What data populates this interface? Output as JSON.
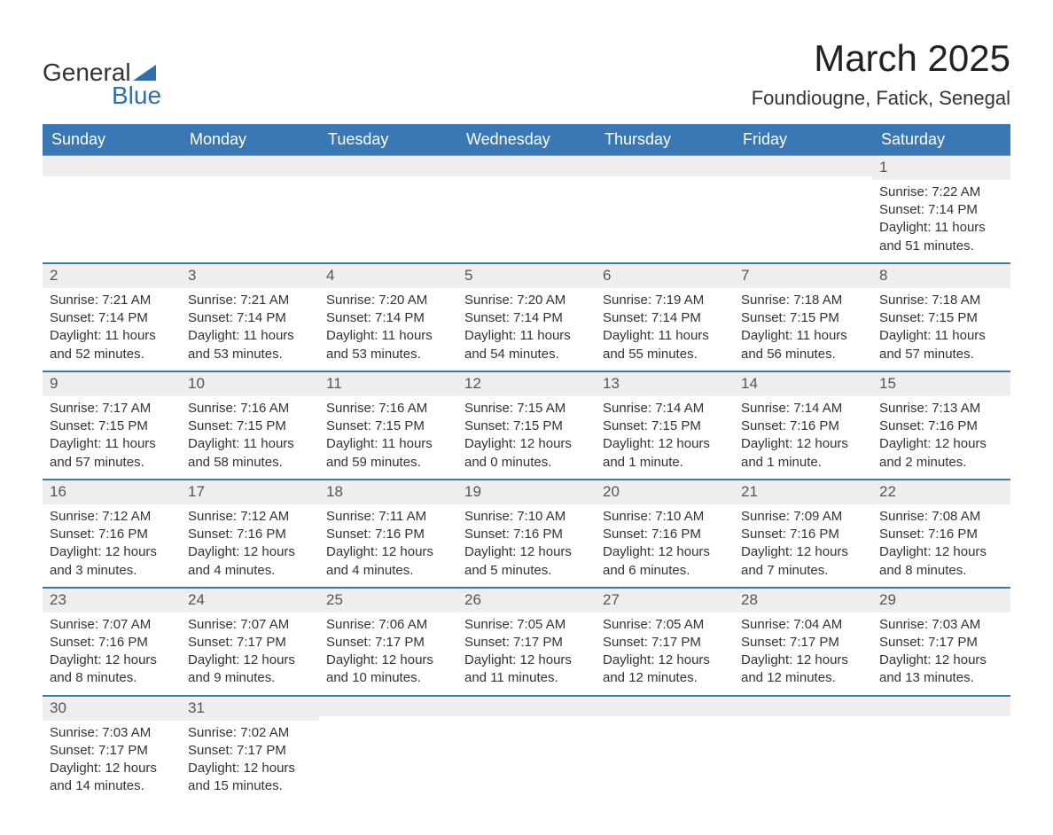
{
  "logo": {
    "text1": "General",
    "text2": "Blue",
    "shape_color": "#2f6fad"
  },
  "title": "March 2025",
  "location": "Foundiougne, Fatick, Senegal",
  "colors": {
    "header_bg": "#3a77b5",
    "header_text": "#ffffff",
    "daynum_bg": "#eeeeee",
    "row_divider": "#3a77b5",
    "body_text": "#333333"
  },
  "typography": {
    "title_fontsize": 42,
    "location_fontsize": 22,
    "dayheader_fontsize": 18,
    "body_fontsize": 15
  },
  "day_headers": [
    "Sunday",
    "Monday",
    "Tuesday",
    "Wednesday",
    "Thursday",
    "Friday",
    "Saturday"
  ],
  "weeks": [
    [
      null,
      null,
      null,
      null,
      null,
      null,
      {
        "n": "1",
        "sunrise": "Sunrise: 7:22 AM",
        "sunset": "Sunset: 7:14 PM",
        "daylight1": "Daylight: 11 hours",
        "daylight2": "and 51 minutes."
      }
    ],
    [
      {
        "n": "2",
        "sunrise": "Sunrise: 7:21 AM",
        "sunset": "Sunset: 7:14 PM",
        "daylight1": "Daylight: 11 hours",
        "daylight2": "and 52 minutes."
      },
      {
        "n": "3",
        "sunrise": "Sunrise: 7:21 AM",
        "sunset": "Sunset: 7:14 PM",
        "daylight1": "Daylight: 11 hours",
        "daylight2": "and 53 minutes."
      },
      {
        "n": "4",
        "sunrise": "Sunrise: 7:20 AM",
        "sunset": "Sunset: 7:14 PM",
        "daylight1": "Daylight: 11 hours",
        "daylight2": "and 53 minutes."
      },
      {
        "n": "5",
        "sunrise": "Sunrise: 7:20 AM",
        "sunset": "Sunset: 7:14 PM",
        "daylight1": "Daylight: 11 hours",
        "daylight2": "and 54 minutes."
      },
      {
        "n": "6",
        "sunrise": "Sunrise: 7:19 AM",
        "sunset": "Sunset: 7:14 PM",
        "daylight1": "Daylight: 11 hours",
        "daylight2": "and 55 minutes."
      },
      {
        "n": "7",
        "sunrise": "Sunrise: 7:18 AM",
        "sunset": "Sunset: 7:15 PM",
        "daylight1": "Daylight: 11 hours",
        "daylight2": "and 56 minutes."
      },
      {
        "n": "8",
        "sunrise": "Sunrise: 7:18 AM",
        "sunset": "Sunset: 7:15 PM",
        "daylight1": "Daylight: 11 hours",
        "daylight2": "and 57 minutes."
      }
    ],
    [
      {
        "n": "9",
        "sunrise": "Sunrise: 7:17 AM",
        "sunset": "Sunset: 7:15 PM",
        "daylight1": "Daylight: 11 hours",
        "daylight2": "and 57 minutes."
      },
      {
        "n": "10",
        "sunrise": "Sunrise: 7:16 AM",
        "sunset": "Sunset: 7:15 PM",
        "daylight1": "Daylight: 11 hours",
        "daylight2": "and 58 minutes."
      },
      {
        "n": "11",
        "sunrise": "Sunrise: 7:16 AM",
        "sunset": "Sunset: 7:15 PM",
        "daylight1": "Daylight: 11 hours",
        "daylight2": "and 59 minutes."
      },
      {
        "n": "12",
        "sunrise": "Sunrise: 7:15 AM",
        "sunset": "Sunset: 7:15 PM",
        "daylight1": "Daylight: 12 hours",
        "daylight2": "and 0 minutes."
      },
      {
        "n": "13",
        "sunrise": "Sunrise: 7:14 AM",
        "sunset": "Sunset: 7:15 PM",
        "daylight1": "Daylight: 12 hours",
        "daylight2": "and 1 minute."
      },
      {
        "n": "14",
        "sunrise": "Sunrise: 7:14 AM",
        "sunset": "Sunset: 7:16 PM",
        "daylight1": "Daylight: 12 hours",
        "daylight2": "and 1 minute."
      },
      {
        "n": "15",
        "sunrise": "Sunrise: 7:13 AM",
        "sunset": "Sunset: 7:16 PM",
        "daylight1": "Daylight: 12 hours",
        "daylight2": "and 2 minutes."
      }
    ],
    [
      {
        "n": "16",
        "sunrise": "Sunrise: 7:12 AM",
        "sunset": "Sunset: 7:16 PM",
        "daylight1": "Daylight: 12 hours",
        "daylight2": "and 3 minutes."
      },
      {
        "n": "17",
        "sunrise": "Sunrise: 7:12 AM",
        "sunset": "Sunset: 7:16 PM",
        "daylight1": "Daylight: 12 hours",
        "daylight2": "and 4 minutes."
      },
      {
        "n": "18",
        "sunrise": "Sunrise: 7:11 AM",
        "sunset": "Sunset: 7:16 PM",
        "daylight1": "Daylight: 12 hours",
        "daylight2": "and 4 minutes."
      },
      {
        "n": "19",
        "sunrise": "Sunrise: 7:10 AM",
        "sunset": "Sunset: 7:16 PM",
        "daylight1": "Daylight: 12 hours",
        "daylight2": "and 5 minutes."
      },
      {
        "n": "20",
        "sunrise": "Sunrise: 7:10 AM",
        "sunset": "Sunset: 7:16 PM",
        "daylight1": "Daylight: 12 hours",
        "daylight2": "and 6 minutes."
      },
      {
        "n": "21",
        "sunrise": "Sunrise: 7:09 AM",
        "sunset": "Sunset: 7:16 PM",
        "daylight1": "Daylight: 12 hours",
        "daylight2": "and 7 minutes."
      },
      {
        "n": "22",
        "sunrise": "Sunrise: 7:08 AM",
        "sunset": "Sunset: 7:16 PM",
        "daylight1": "Daylight: 12 hours",
        "daylight2": "and 8 minutes."
      }
    ],
    [
      {
        "n": "23",
        "sunrise": "Sunrise: 7:07 AM",
        "sunset": "Sunset: 7:16 PM",
        "daylight1": "Daylight: 12 hours",
        "daylight2": "and 8 minutes."
      },
      {
        "n": "24",
        "sunrise": "Sunrise: 7:07 AM",
        "sunset": "Sunset: 7:17 PM",
        "daylight1": "Daylight: 12 hours",
        "daylight2": "and 9 minutes."
      },
      {
        "n": "25",
        "sunrise": "Sunrise: 7:06 AM",
        "sunset": "Sunset: 7:17 PM",
        "daylight1": "Daylight: 12 hours",
        "daylight2": "and 10 minutes."
      },
      {
        "n": "26",
        "sunrise": "Sunrise: 7:05 AM",
        "sunset": "Sunset: 7:17 PM",
        "daylight1": "Daylight: 12 hours",
        "daylight2": "and 11 minutes."
      },
      {
        "n": "27",
        "sunrise": "Sunrise: 7:05 AM",
        "sunset": "Sunset: 7:17 PM",
        "daylight1": "Daylight: 12 hours",
        "daylight2": "and 12 minutes."
      },
      {
        "n": "28",
        "sunrise": "Sunrise: 7:04 AM",
        "sunset": "Sunset: 7:17 PM",
        "daylight1": "Daylight: 12 hours",
        "daylight2": "and 12 minutes."
      },
      {
        "n": "29",
        "sunrise": "Sunrise: 7:03 AM",
        "sunset": "Sunset: 7:17 PM",
        "daylight1": "Daylight: 12 hours",
        "daylight2": "and 13 minutes."
      }
    ],
    [
      {
        "n": "30",
        "sunrise": "Sunrise: 7:03 AM",
        "sunset": "Sunset: 7:17 PM",
        "daylight1": "Daylight: 12 hours",
        "daylight2": "and 14 minutes."
      },
      {
        "n": "31",
        "sunrise": "Sunrise: 7:02 AM",
        "sunset": "Sunset: 7:17 PM",
        "daylight1": "Daylight: 12 hours",
        "daylight2": "and 15 minutes."
      },
      null,
      null,
      null,
      null,
      null
    ]
  ]
}
